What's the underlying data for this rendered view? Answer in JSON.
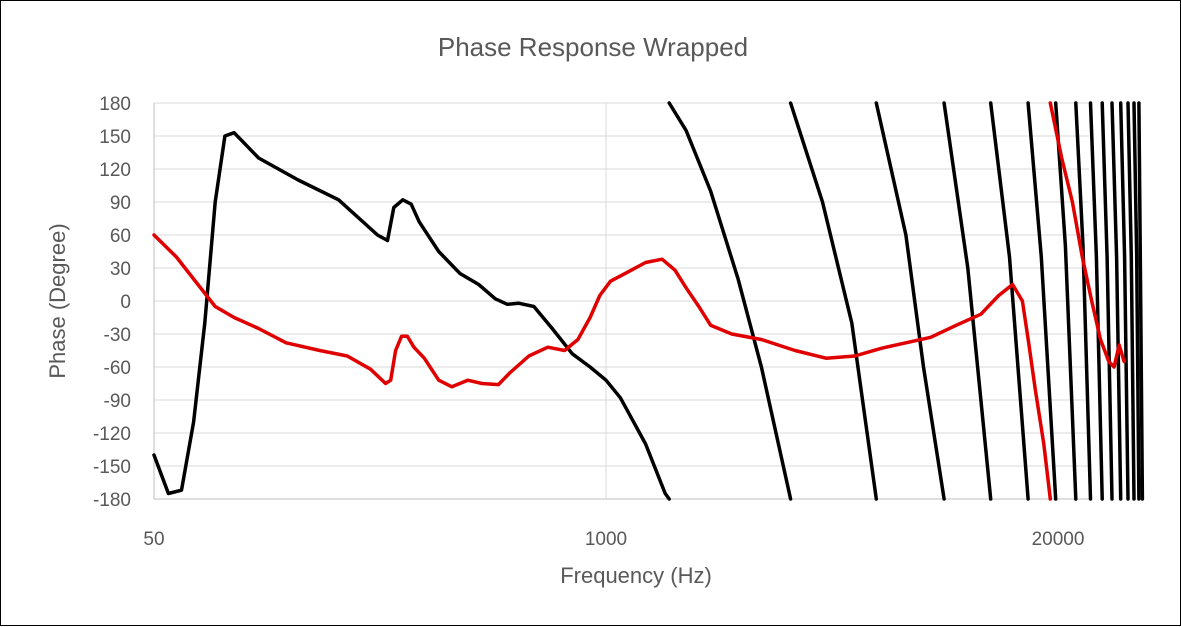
{
  "chart_data": {
    "type": "line",
    "title": "Phase Response Wrapped",
    "xlabel": "Frequency (Hz)",
    "ylabel": "Phase (Degree)",
    "xscale": "log",
    "xlim": [
      50,
      35000
    ],
    "ylim": [
      -180,
      180
    ],
    "x_ticks": [
      50,
      1000,
      20000
    ],
    "x_tick_labels": [
      "50",
      "1000",
      "20000"
    ],
    "y_ticks": [
      180,
      150,
      120,
      90,
      60,
      30,
      0,
      -30,
      -60,
      -90,
      -120,
      -150,
      -180
    ],
    "y_tick_labels": [
      "180",
      "150",
      "120",
      "90",
      "60",
      "30",
      "0",
      "-30",
      "-60",
      "-90",
      "-120",
      "-150",
      "-180"
    ],
    "grid": "horizontal + vertical at 1000",
    "legend": "none",
    "colors": {
      "black_series": "#000000",
      "red_series": "#e00000"
    },
    "series": [
      {
        "color": "#000000",
        "segments": [
          [
            [
              50,
              -140
            ],
            [
              55,
              -175
            ],
            [
              60,
              -172
            ],
            [
              65,
              -110
            ],
            [
              70,
              -20
            ],
            [
              75,
              90
            ],
            [
              80,
              150
            ],
            [
              85,
              153
            ],
            [
              100,
              130
            ],
            [
              130,
              110
            ],
            [
              170,
              92
            ],
            [
              220,
              60
            ],
            [
              235,
              55
            ],
            [
              245,
              85
            ],
            [
              260,
              92
            ],
            [
              275,
              88
            ],
            [
              290,
              72
            ],
            [
              330,
              45
            ],
            [
              380,
              25
            ],
            [
              430,
              15
            ],
            [
              480,
              2
            ],
            [
              520,
              -3
            ],
            [
              560,
              -2
            ],
            [
              620,
              -5
            ],
            [
              700,
              -25
            ],
            [
              800,
              -48
            ],
            [
              900,
              -60
            ],
            [
              1000,
              -72
            ],
            [
              1100,
              -88
            ],
            [
              1300,
              -130
            ],
            [
              1480,
              -175
            ],
            [
              1520,
              -180
            ]
          ],
          [
            [
              1520,
              180
            ],
            [
              1700,
              155
            ],
            [
              2000,
              100
            ],
            [
              2400,
              20
            ],
            [
              2800,
              -60
            ],
            [
              3400,
              -180
            ]
          ],
          [
            [
              3400,
              180
            ],
            [
              4200,
              90
            ],
            [
              5100,
              -20
            ],
            [
              6000,
              -180
            ]
          ],
          [
            [
              6000,
              180
            ],
            [
              7300,
              60
            ],
            [
              8200,
              -60
            ],
            [
              9400,
              -180
            ]
          ],
          [
            [
              9400,
              180
            ],
            [
              11000,
              30
            ],
            [
              12800,
              -180
            ]
          ],
          [
            [
              12800,
              180
            ],
            [
              14500,
              40
            ],
            [
              16400,
              -180
            ]
          ],
          [
            [
              16400,
              180
            ],
            [
              17900,
              40
            ],
            [
              19700,
              -180
            ]
          ],
          [
            [
              19700,
              180
            ],
            [
              21000,
              50
            ],
            [
              22500,
              -180
            ]
          ],
          [
            [
              22500,
              180
            ],
            [
              23600,
              50
            ],
            [
              24800,
              -180
            ]
          ],
          [
            [
              24800,
              180
            ],
            [
              25800,
              40
            ],
            [
              26800,
              -180
            ]
          ],
          [
            [
              26800,
              180
            ],
            [
              27700,
              40
            ],
            [
              28600,
              -180
            ]
          ],
          [
            [
              28600,
              180
            ],
            [
              29500,
              40
            ],
            [
              30300,
              -180
            ]
          ],
          [
            [
              30300,
              180
            ],
            [
              31100,
              40
            ],
            [
              31800,
              -180
            ]
          ],
          [
            [
              31800,
              180
            ],
            [
              32500,
              40
            ],
            [
              33100,
              -180
            ]
          ],
          [
            [
              33100,
              180
            ],
            [
              33700,
              40
            ],
            [
              34200,
              -180
            ]
          ],
          [
            [
              34200,
              180
            ],
            [
              34600,
              0
            ],
            [
              35000,
              -180
            ]
          ]
        ]
      },
      {
        "color": "#e00000",
        "segments": [
          [
            [
              50,
              60
            ],
            [
              58,
              40
            ],
            [
              65,
              20
            ],
            [
              75,
              -5
            ],
            [
              85,
              -15
            ],
            [
              100,
              -25
            ],
            [
              120,
              -38
            ],
            [
              150,
              -45
            ],
            [
              180,
              -50
            ],
            [
              210,
              -62
            ],
            [
              232,
              -75
            ],
            [
              240,
              -72
            ],
            [
              248,
              -45
            ],
            [
              258,
              -32
            ],
            [
              268,
              -32
            ],
            [
              280,
              -42
            ],
            [
              300,
              -52
            ],
            [
              330,
              -72
            ],
            [
              360,
              -78
            ],
            [
              400,
              -72
            ],
            [
              440,
              -75
            ],
            [
              490,
              -76
            ],
            [
              530,
              -65
            ],
            [
              600,
              -50
            ],
            [
              680,
              -42
            ],
            [
              760,
              -45
            ],
            [
              830,
              -35
            ],
            [
              900,
              -15
            ],
            [
              960,
              5
            ],
            [
              1030,
              18
            ],
            [
              1150,
              26
            ],
            [
              1300,
              35
            ],
            [
              1450,
              38
            ],
            [
              1580,
              28
            ],
            [
              1700,
              12
            ],
            [
              1850,
              -5
            ],
            [
              2000,
              -22
            ],
            [
              2300,
              -30
            ],
            [
              2800,
              -35
            ],
            [
              3500,
              -45
            ],
            [
              4300,
              -52
            ],
            [
              5200,
              -50
            ],
            [
              6200,
              -43
            ],
            [
              7300,
              -38
            ],
            [
              8600,
              -33
            ],
            [
              10200,
              -22
            ],
            [
              12000,
              -12
            ],
            [
              13500,
              5
            ],
            [
              14800,
              15
            ],
            [
              15800,
              0
            ],
            [
              16500,
              -40
            ],
            [
              17200,
              -80
            ],
            [
              18200,
              -130
            ],
            [
              19000,
              -180
            ]
          ],
          [
            [
              19000,
              180
            ],
            [
              20500,
              130
            ],
            [
              22000,
              90
            ],
            [
              23500,
              40
            ],
            [
              25000,
              0
            ],
            [
              26500,
              -35
            ],
            [
              28000,
              -55
            ],
            [
              29000,
              -60
            ],
            [
              30000,
              -40
            ],
            [
              31000,
              -55
            ]
          ]
        ]
      }
    ]
  }
}
